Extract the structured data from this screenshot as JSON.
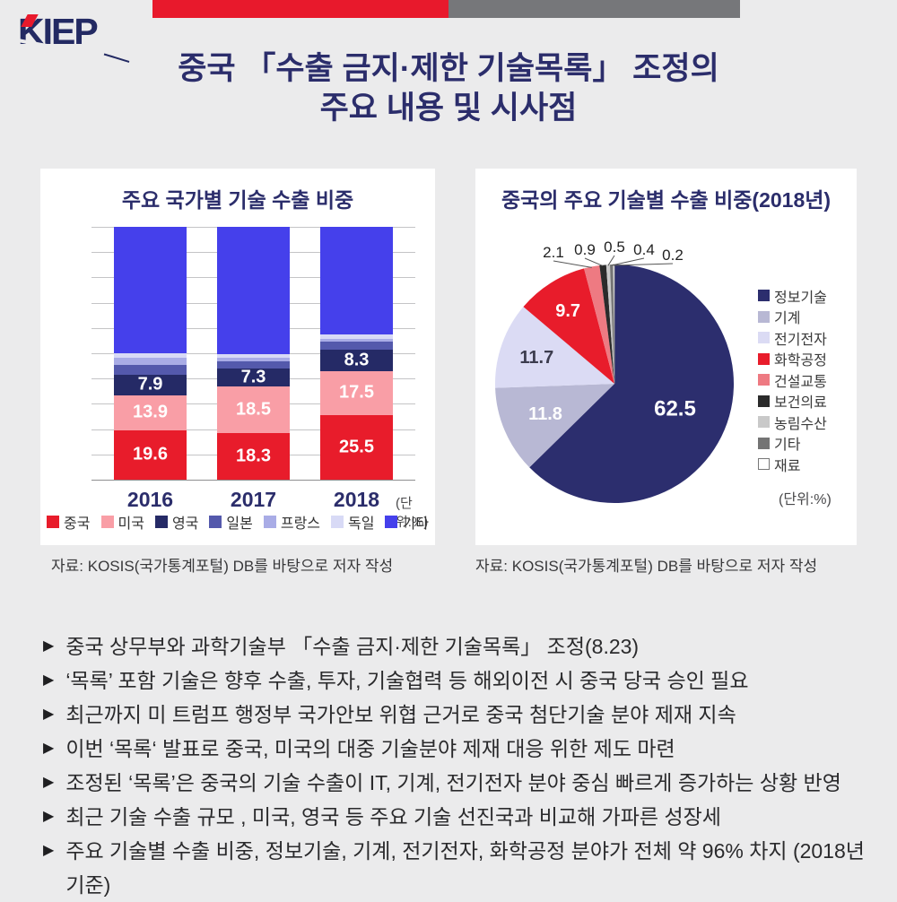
{
  "header": {
    "logo_text": "KIEP",
    "title_line1": "중국 「수출 금지·제한 기술목록」 조정의",
    "title_line2": "주요 내용 및 시사점"
  },
  "bar_panel": {
    "title": "주요 국가별 기술 수출 비중",
    "unit_label": "(단위:%)",
    "source": "자료: KOSIS(국가통계포털) DB를 바탕으로 저자 작성"
  },
  "pie_panel": {
    "title": "중국의 주요 기술별 수출 비중(2018년)",
    "unit_label": "(단위:%)",
    "source": "자료: KOSIS(국가통계포털) DB를 바탕으로 저자 작성"
  },
  "chart_data": [
    {
      "type": "bar",
      "stacked": true,
      "title": "주요 국가별 기술 수출 비중",
      "unit": "%",
      "categories": [
        "2016",
        "2017",
        "2018"
      ],
      "ylim": [
        0,
        100
      ],
      "gridline_interval": 10,
      "grid": true,
      "legend_position": "bottom",
      "series": [
        {
          "name": "중국",
          "color": "#E81C2B",
          "values": [
            19.6,
            18.3,
            25.5
          ],
          "labeled": true
        },
        {
          "name": "미국",
          "color": "#F99EA6",
          "values": [
            13.9,
            18.5,
            17.5
          ],
          "labeled": true
        },
        {
          "name": "영국",
          "color": "#252A66",
          "values": [
            7.9,
            7.3,
            8.3
          ],
          "labeled": true
        },
        {
          "name": "일본",
          "color": "#5459AC",
          "values": [
            4.0,
            2.6,
            3.3
          ],
          "labeled": false
        },
        {
          "name": "프랑스",
          "color": "#A9ACE6",
          "values": [
            2.9,
            1.6,
            1.2
          ],
          "labeled": false
        },
        {
          "name": "독일",
          "color": "#D8DAF6",
          "values": [
            1.9,
            1.4,
            1.7
          ],
          "labeled": false
        },
        {
          "name": "기타",
          "color": "#4540EB",
          "values": [
            49.8,
            50.3,
            42.5
          ],
          "labeled": false
        }
      ]
    },
    {
      "type": "pie",
      "title": "중국의 주요 기술별 수출 비중(2018년)",
      "unit": "%",
      "start_angle_deg": 0,
      "direction": "clockwise",
      "legend_position": "right",
      "slices": [
        {
          "name": "정보기술",
          "value": 62.5,
          "color": "#2C2E6E"
        },
        {
          "name": "기계",
          "value": 11.8,
          "color": "#B8B8D4"
        },
        {
          "name": "전기전자",
          "value": 11.7,
          "color": "#DBDBF4"
        },
        {
          "name": "화학공정",
          "value": 9.7,
          "color": "#E81C2B"
        },
        {
          "name": "건설교통",
          "value": 2.1,
          "color": "#EE7A82"
        },
        {
          "name": "보건의료",
          "value": 0.9,
          "color": "#2B2B2B"
        },
        {
          "name": "농림수산",
          "value": 0.5,
          "color": "#C9C9C9"
        },
        {
          "name": "기타",
          "value": 0.4,
          "color": "#747474"
        },
        {
          "name": "재료",
          "value": 0.2,
          "color": "#FFFFFF"
        }
      ]
    }
  ],
  "bullets": [
    "중국 상무부와 과학기술부 「수출 금지·제한 기술목록」 조정(8.23)",
    "‘목록’ 포함 기술은 향후 수출, 투자, 기술협력 등 해외이전 시 중국 당국 승인 필요",
    "최근까지 미 트럼프 행정부 국가안보 위협 근거로 중국 첨단기술 분야 제재 지속",
    "이번 ‘목록‘ 발표로 중국, 미국의 대중 기술분야 제재 대응 위한 제도 마련",
    "조정된 ‘목록’은 중국의 기술 수출이  IT, 기계, 전기전자 분야 중심 빠르게 증가하는 상황 반영",
    "최근 기술 수출 규모 , 미국, 영국 등 주요 기술 선진국과 비교해 가파른 성장세",
    "주요 기술별 수출 비중, 정보기술, 기계, 전기전자, 화학공정 분야가 전체 약 96% 차지 (2018년 기준)"
  ]
}
